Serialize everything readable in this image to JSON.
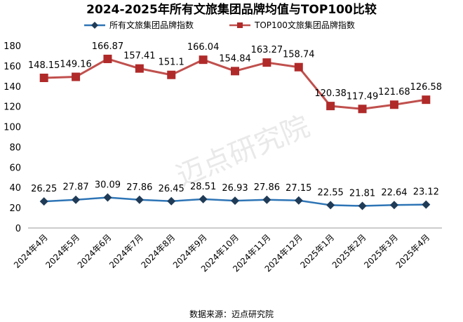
{
  "chart_data": {
    "type": "line",
    "title": "2024-2025年所有文旅集团品牌均值与TOP100比较",
    "categories": [
      "2024年4月",
      "2024年5月",
      "2024年6月",
      "2024年7月",
      "2024年8月",
      "2024年9月",
      "2024年10月",
      "2024年11月",
      "2024年12月",
      "2025年1月",
      "2025年2月",
      "2025年3月",
      "2025年4月"
    ],
    "series": [
      {
        "name": "所有文旅集团品牌指数",
        "values": [
          26.25,
          27.87,
          30.09,
          27.86,
          26.45,
          28.51,
          26.93,
          27.86,
          27.15,
          22.55,
          21.81,
          22.64,
          23.12
        ],
        "color": "#2e75b6",
        "marker": "diamond"
      },
      {
        "name": "TOP100文旅集团品牌指数",
        "values": [
          148.15,
          149.16,
          166.87,
          157.41,
          151.1,
          166.04,
          154.84,
          163.27,
          158.74,
          120.38,
          117.49,
          121.68,
          126.58
        ],
        "color": "#c0504d",
        "marker": "square"
      }
    ],
    "series_labels": [
      [
        "26.25",
        "27.87",
        "30.09",
        "27.86",
        "26.45",
        "28.51",
        "26.93",
        "27.86",
        "27.15",
        "22.55",
        "21.81",
        "22.64",
        "23.12"
      ],
      [
        "148.15",
        "149.16",
        "166.87",
        "157.41",
        "151.1",
        "166.04",
        "154.84",
        "163.27",
        "158.74",
        "120.38",
        "117.49",
        "121.68",
        "126.58"
      ]
    ],
    "ylim": [
      0,
      180
    ],
    "yticks": [
      "0",
      "20",
      "40",
      "60",
      "80",
      "100",
      "120",
      "140",
      "160",
      "180"
    ],
    "grid": false,
    "legend": "top"
  },
  "source_text": "数据来源：迈点研究院",
  "watermark": "迈点研究院"
}
